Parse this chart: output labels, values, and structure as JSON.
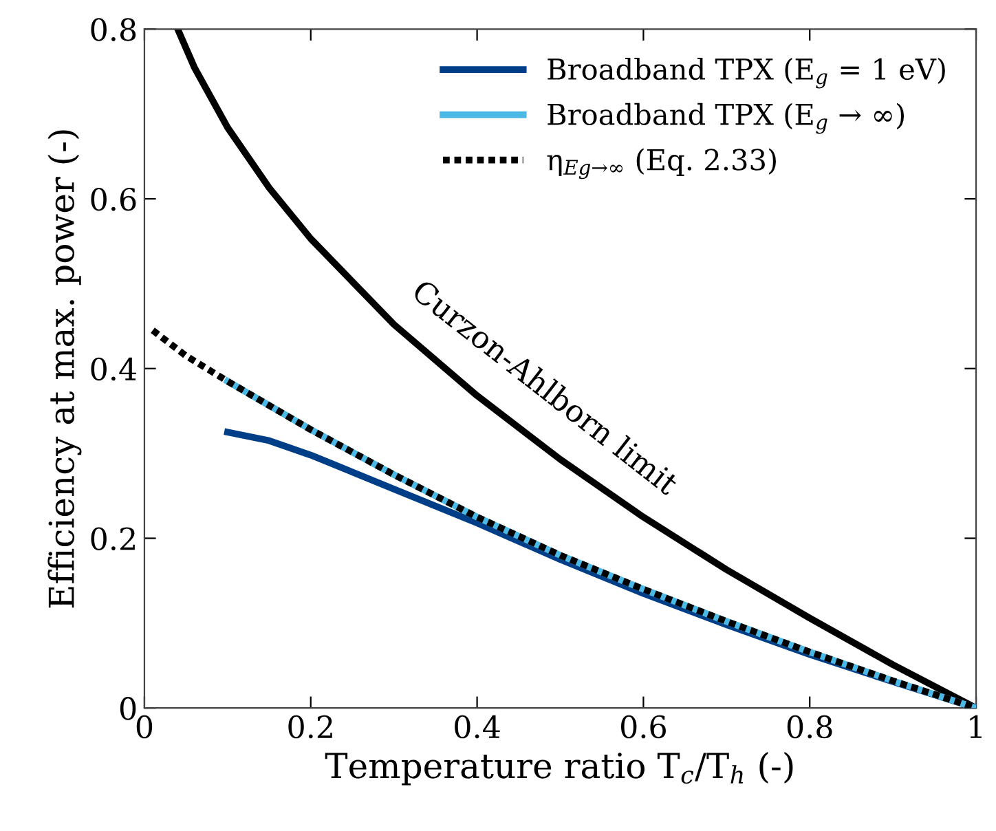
{
  "chart_data": {
    "type": "line",
    "xlabel": "Temperature ratio T$_{c}$/T$_{h}$ (-)",
    "ylabel": "Efficiency at max. power (-)",
    "legend": "top right",
    "grid": false,
    "line_style": "solid",
    "marker": "none",
    "xlim": [
      0,
      1
    ],
    "ylim": [
      0,
      0.8
    ],
    "xticks": [
      0,
      0.2,
      0.4,
      0.6,
      0.8,
      1
    ],
    "yticks": [
      0,
      0.2,
      0.4,
      0.6,
      0.8
    ],
    "series": [
      {
        "color": "#000000",
        "x": [
          0.04,
          0.06,
          0.1,
          0.15,
          0.2,
          0.3,
          0.4,
          0.5,
          0.6,
          0.7,
          0.8,
          0.9,
          1.0
        ],
        "values": [
          0.8,
          0.755,
          0.684,
          0.613,
          0.553,
          0.452,
          0.368,
          0.293,
          0.225,
          0.163,
          0.106,
          0.051,
          0
        ]
      },
      {
        "name": "Broadband TPX (E$_{g}$ = 1 eV)",
        "color": "#003f87",
        "x": [
          0.1,
          0.15,
          0.2,
          0.3,
          0.4,
          0.5,
          0.6,
          0.7,
          0.8,
          0.9,
          1.0
        ],
        "values": [
          0.325,
          0.315,
          0.298,
          0.258,
          0.218,
          0.175,
          0.135,
          0.098,
          0.063,
          0.031,
          0
        ]
      },
      {
        "name": "Broadband TPX (E$_{g}$ → ∞)",
        "color": "#4cb8e6",
        "x": [
          0.1,
          0.2,
          0.3,
          0.4,
          0.5,
          0.6,
          0.7,
          0.8,
          0.9,
          1.0
        ],
        "values": [
          0.385,
          0.328,
          0.275,
          0.225,
          0.18,
          0.14,
          0.102,
          0.066,
          0.032,
          0
        ]
      },
      {
        "name": "η$_{Eg→∞}$ (Eq. 2.33)",
        "color": "#000000",
        "line_style": "dotted",
        "x": [
          0.01,
          0.05,
          0.1,
          0.2,
          0.3,
          0.4,
          0.5,
          0.6,
          0.7,
          0.8,
          0.9,
          1.0
        ],
        "values": [
          0.445,
          0.415,
          0.385,
          0.328,
          0.275,
          0.225,
          0.18,
          0.14,
          0.102,
          0.066,
          0.032,
          0
        ]
      }
    ],
    "annotations": [
      "Curzon-Ahlborn limit"
    ]
  }
}
